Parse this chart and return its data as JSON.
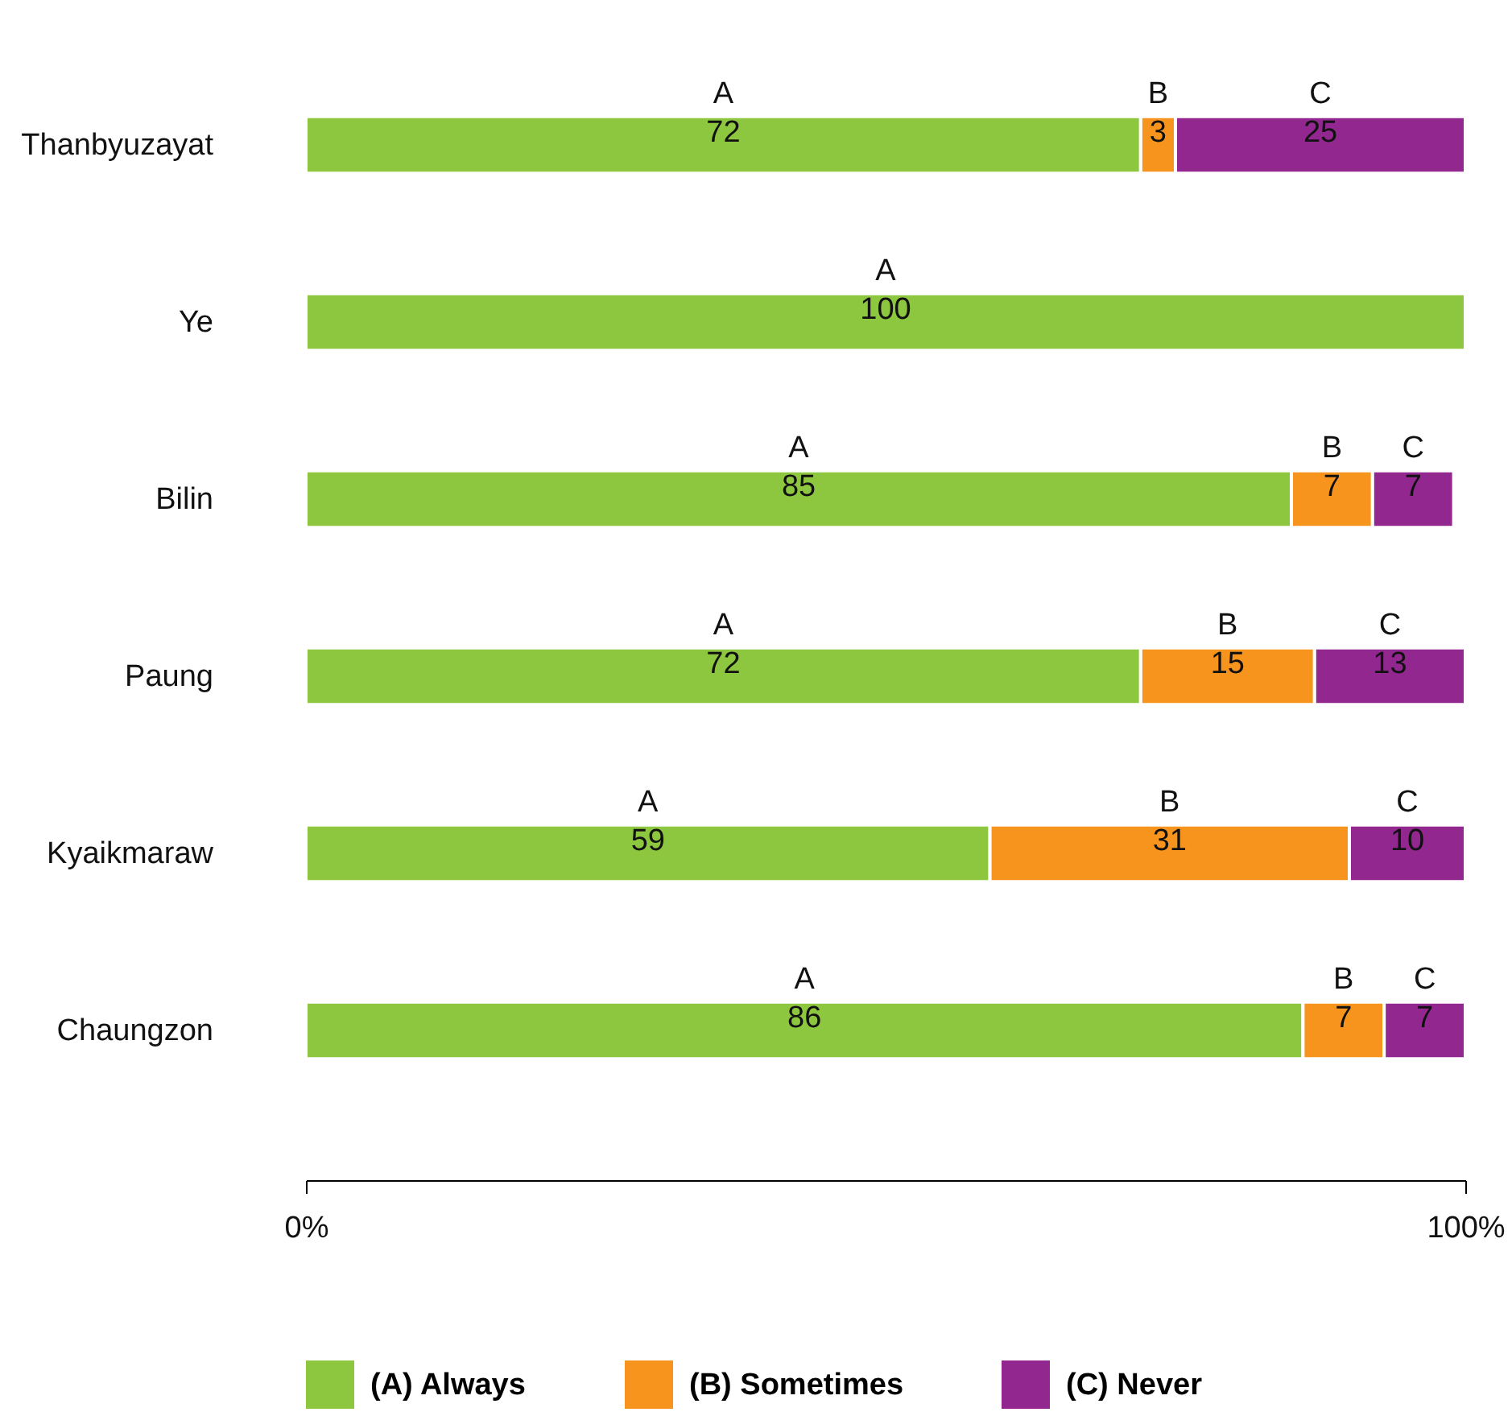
{
  "chart_data": {
    "type": "bar",
    "orientation": "horizontal",
    "stacked": true,
    "categories": [
      "Thanbyuzayat",
      "Ye",
      "Bilin",
      "Paung",
      "Kyaikmaraw",
      "Chaungzon"
    ],
    "series": [
      {
        "name": "(A) Always",
        "color": "#8dc63f",
        "values": [
          72,
          100,
          85,
          72,
          59,
          86
        ],
        "value_labels": [
          "A\n72",
          "A\n100",
          "A\n85",
          "A\n72",
          "A\n59",
          "A\n86"
        ]
      },
      {
        "name": "(B) Sometimes",
        "color": "#f7941d",
        "values": [
          3,
          null,
          7,
          15,
          31,
          7
        ],
        "value_labels": [
          "B\n3",
          null,
          "B\n7",
          "B\n15",
          "B\n31",
          "B\n7"
        ]
      },
      {
        "name": "(C) Never",
        "color": "#92278f",
        "values": [
          25,
          null,
          7,
          13,
          10,
          7
        ],
        "value_labels": [
          "C\n25",
          null,
          "C\n7",
          "C\n13",
          "C\n10",
          "C\n7"
        ]
      }
    ],
    "xlim": [
      0,
      100
    ],
    "xticks": [
      {
        "value": 0,
        "label": "0%"
      },
      {
        "value": 100,
        "label": "100%"
      }
    ],
    "grid": false,
    "legend": "bottom"
  }
}
